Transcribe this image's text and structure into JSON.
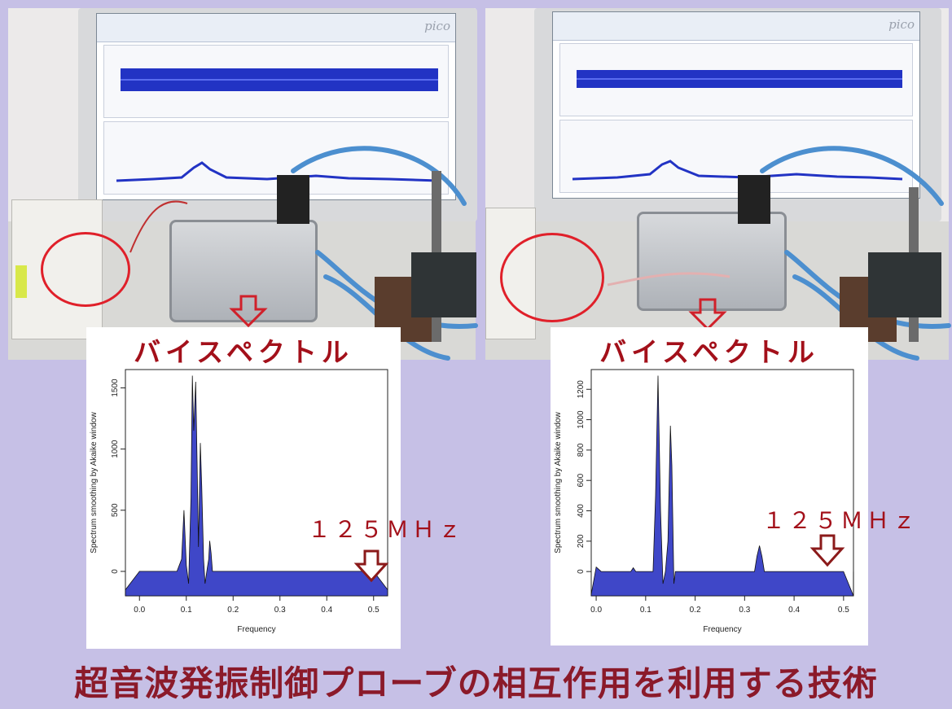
{
  "colors": {
    "accent_red": "#a3101a",
    "fill_blue": "#3f47c8",
    "footer_text": "#8b1a2a",
    "background": "#c6c0e6"
  },
  "panels": [
    {
      "screen_brand": "pico"
    },
    {
      "screen_brand": "pico"
    }
  ],
  "chart_data": [
    {
      "type": "area",
      "title": "バイスペクトル",
      "xlabel": "Frequency",
      "ylabel": "Spectrum smoothing by Akaike window",
      "xlim": [
        -0.03,
        0.53
      ],
      "ylim": [
        -200,
        1650
      ],
      "xticks": [
        "0.0",
        "0.1",
        "0.2",
        "0.3",
        "0.4",
        "0.5"
      ],
      "yticks": [
        "0",
        "500",
        "1000",
        "1500"
      ],
      "annotation": "１２５ＭＨｚ",
      "series": [
        {
          "x": [
            -0.03,
            0.0,
            0.05,
            0.08,
            0.09,
            0.095,
            0.1,
            0.105,
            0.11,
            0.113,
            0.116,
            0.12,
            0.123,
            0.126,
            0.13,
            0.133,
            0.137,
            0.14,
            0.145,
            0.148,
            0.15,
            0.153,
            0.156,
            0.16,
            0.2,
            0.3,
            0.4,
            0.5,
            0.53
          ],
          "y": [
            -150,
            0,
            0,
            0,
            100,
            500,
            50,
            -100,
            600,
            1600,
            1150,
            1550,
            900,
            200,
            1050,
            700,
            100,
            -100,
            30,
            100,
            250,
            150,
            0,
            0,
            0,
            0,
            0,
            0,
            -150
          ]
        }
      ]
    },
    {
      "type": "area",
      "title": "バイスペクトル",
      "xlabel": "Frequency",
      "ylabel": "Spectrum smoothing by Akaike window",
      "xlim": [
        -0.01,
        0.52
      ],
      "ylim": [
        -160,
        1330
      ],
      "xticks": [
        "0.0",
        "0.1",
        "0.2",
        "0.3",
        "0.4",
        "0.5"
      ],
      "yticks": [
        "0",
        "200",
        "400",
        "600",
        "800",
        "1000",
        "1200"
      ],
      "annotation": "１２５ＭＨｚ",
      "series": [
        {
          "x": [
            -0.01,
            0.0,
            0.01,
            0.05,
            0.07,
            0.075,
            0.08,
            0.1,
            0.115,
            0.12,
            0.125,
            0.13,
            0.135,
            0.14,
            0.145,
            0.15,
            0.153,
            0.157,
            0.16,
            0.18,
            0.3,
            0.32,
            0.325,
            0.33,
            0.335,
            0.34,
            0.4,
            0.45,
            0.5,
            0.52
          ],
          "y": [
            -150,
            30,
            0,
            0,
            0,
            25,
            0,
            0,
            0,
            500,
            1290,
            400,
            -80,
            0,
            200,
            960,
            700,
            -80,
            0,
            0,
            0,
            0,
            100,
            170,
            100,
            0,
            0,
            0,
            0,
            -160
          ]
        }
      ]
    }
  ],
  "footer": {
    "caption": "超音波発振制御プローブの相互作用を利用する技術"
  }
}
